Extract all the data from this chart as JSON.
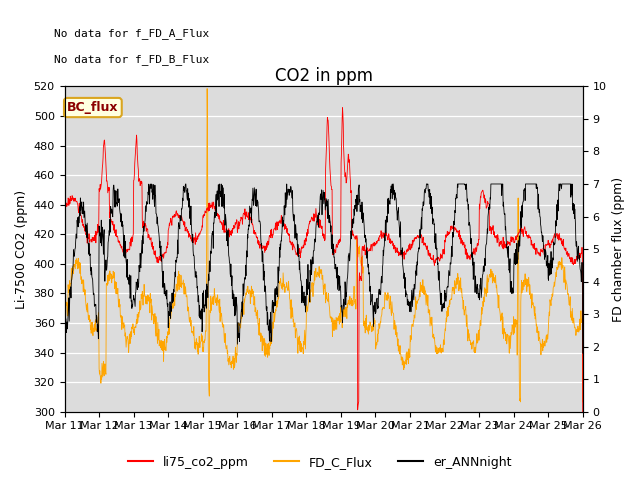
{
  "title": "CO2 in ppm",
  "ylabel_left": "Li-7500 CO2 (ppm)",
  "ylabel_right": "FD chamber flux (ppm)",
  "ylim_left": [
    300,
    520
  ],
  "ylim_right": [
    0.0,
    10.0
  ],
  "yticks_left": [
    300,
    320,
    340,
    360,
    380,
    400,
    420,
    440,
    460,
    480,
    500,
    520
  ],
  "yticks_right": [
    0.0,
    1.0,
    2.0,
    3.0,
    4.0,
    5.0,
    6.0,
    7.0,
    8.0,
    9.0,
    10.0
  ],
  "xtick_labels": [
    "Mar 11",
    "Mar 12",
    "Mar 13",
    "Mar 14",
    "Mar 15",
    "Mar 16",
    "Mar 17",
    "Mar 18",
    "Mar 19",
    "Mar 20",
    "Mar 21",
    "Mar 22",
    "Mar 23",
    "Mar 24",
    "Mar 25",
    "Mar 26"
  ],
  "text_annotations": [
    "No data for f_FD_A_Flux",
    "No data for f_FD_B_Flux"
  ],
  "bc_flux_label": "BC_flux",
  "legend_entries": [
    "li75_co2_ppm",
    "FD_C_Flux",
    "er_ANNnight"
  ],
  "line_colors": [
    "red",
    "orange",
    "black"
  ],
  "background_color": "#dcdcdc",
  "title_fontsize": 12,
  "axis_fontsize": 9,
  "tick_fontsize": 8,
  "annotation_fontsize": 8
}
